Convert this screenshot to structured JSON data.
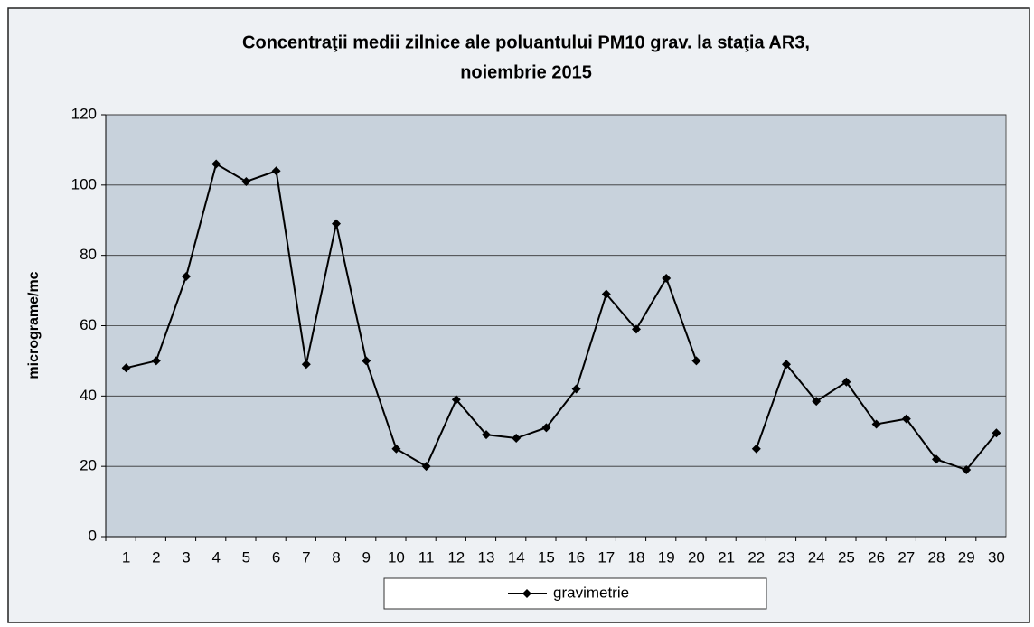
{
  "chart_data": {
    "type": "line",
    "title": [
      "Concentraţii medii zilnice ale poluantului  PM10 grav. la staţia AR3,",
      "noiembrie 2015"
    ],
    "y_label": "micrograme/mc",
    "categories": [
      "1",
      "2",
      "3",
      "4",
      "5",
      "6",
      "7",
      "8",
      "9",
      "10",
      "11",
      "12",
      "13",
      "14",
      "15",
      "16",
      "17",
      "18",
      "19",
      "20",
      "21",
      "22",
      "23",
      "24",
      "25",
      "26",
      "27",
      "28",
      "29",
      "30"
    ],
    "series": [
      {
        "name": "gravimetrie",
        "color": "#000000",
        "values": [
          48,
          50,
          74,
          106,
          101,
          104,
          49,
          89,
          50,
          25,
          20,
          39,
          29,
          28,
          31,
          42,
          69,
          59,
          73.5,
          50,
          null,
          25,
          49,
          38.5,
          44,
          32,
          33.5,
          22,
          19,
          29.5
        ]
      }
    ],
    "ylim": [
      0,
      120
    ],
    "yticks": [
      0,
      20,
      40,
      60,
      80,
      100,
      120
    ],
    "grid": true,
    "legend": "bottom"
  }
}
